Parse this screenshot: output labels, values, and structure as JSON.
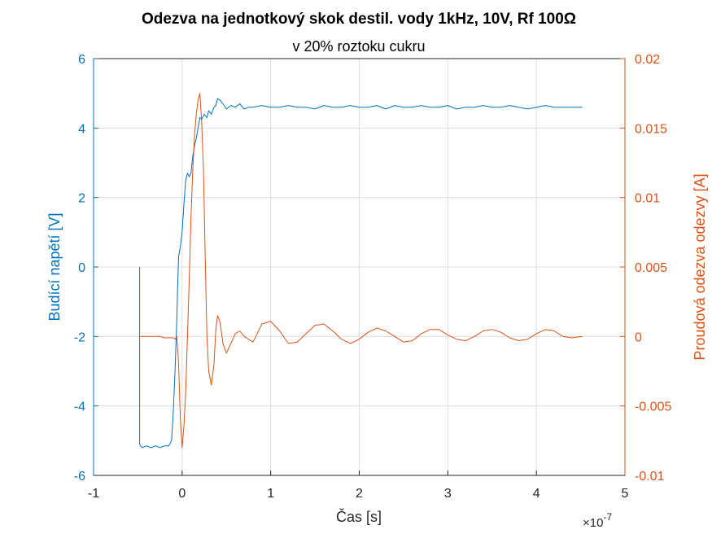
{
  "chart_data": {
    "type": "line",
    "title": "Odezva na jednotkový skok destil. vody 1kHz, 10V, Rf 100Ω",
    "subtitle": "v 20% roztoku cukru",
    "xlabel": "Čas [s]",
    "x_exponent_label": "×10",
    "x_exponent_power": "-7",
    "ylabel_left": "Budící napětí [V]",
    "ylabel_right": "Proudová odezva odezvy [A]",
    "xlim": [
      -1,
      5
    ],
    "ylim_left": [
      -6,
      6
    ],
    "ylim_right": [
      -0.01,
      0.02
    ],
    "x_ticks": [
      "-1",
      "0",
      "1",
      "2",
      "3",
      "4",
      "5"
    ],
    "y_ticks_left": [
      "-6",
      "-4",
      "-2",
      "0",
      "2",
      "4",
      "6"
    ],
    "y_ticks_right": [
      "-0.01",
      "-0.005",
      "0",
      "0.005",
      "0.01",
      "0.015",
      "0.02"
    ],
    "grid": true,
    "series": [
      {
        "axis": "left",
        "color": "#0072BD",
        "x": [
          -0.48,
          -0.48,
          -0.47,
          -0.45,
          -0.4,
          -0.35,
          -0.3,
          -0.25,
          -0.2,
          -0.15,
          -0.12,
          -0.1,
          -0.08,
          -0.06,
          -0.05,
          -0.04,
          -0.02,
          0.0,
          0.02,
          0.04,
          0.06,
          0.08,
          0.1,
          0.12,
          0.14,
          0.16,
          0.18,
          0.2,
          0.22,
          0.25,
          0.28,
          0.3,
          0.33,
          0.36,
          0.38,
          0.4,
          0.43,
          0.46,
          0.5,
          0.55,
          0.6,
          0.65,
          0.7,
          0.75,
          0.8,
          0.9,
          1.0,
          1.1,
          1.2,
          1.3,
          1.4,
          1.5,
          1.6,
          1.7,
          1.8,
          1.9,
          2.0,
          2.1,
          2.2,
          2.3,
          2.4,
          2.5,
          2.6,
          2.7,
          2.8,
          2.9,
          3.0,
          3.1,
          3.2,
          3.3,
          3.4,
          3.5,
          3.6,
          3.7,
          3.8,
          3.9,
          4.0,
          4.1,
          4.2,
          4.3,
          4.4,
          4.52
        ],
        "values": [
          0.0,
          -5.1,
          -5.15,
          -5.2,
          -5.15,
          -5.2,
          -5.15,
          -5.2,
          -5.15,
          -5.15,
          -5.0,
          -4.2,
          -3.0,
          -1.5,
          -0.5,
          0.3,
          0.6,
          1.0,
          1.8,
          2.5,
          2.7,
          2.6,
          2.7,
          3.2,
          3.5,
          3.7,
          4.0,
          4.3,
          4.25,
          4.4,
          4.3,
          4.5,
          4.4,
          4.6,
          4.65,
          4.85,
          4.8,
          4.7,
          4.55,
          4.65,
          4.6,
          4.7,
          4.55,
          4.6,
          4.6,
          4.65,
          4.6,
          4.6,
          4.65,
          4.6,
          4.6,
          4.55,
          4.65,
          4.6,
          4.6,
          4.65,
          4.6,
          4.6,
          4.65,
          4.55,
          4.65,
          4.6,
          4.6,
          4.65,
          4.6,
          4.6,
          4.65,
          4.55,
          4.6,
          4.6,
          4.65,
          4.6,
          4.6,
          4.65,
          4.6,
          4.55,
          4.6,
          4.65,
          4.6,
          4.6,
          4.6,
          4.6
        ]
      },
      {
        "axis": "right",
        "color": "#D95319",
        "x": [
          -0.47,
          -0.45,
          -0.4,
          -0.35,
          -0.3,
          -0.25,
          -0.2,
          -0.15,
          -0.1,
          -0.08,
          -0.06,
          -0.04,
          -0.02,
          0.0,
          0.02,
          0.04,
          0.06,
          0.08,
          0.1,
          0.12,
          0.14,
          0.16,
          0.18,
          0.2,
          0.22,
          0.24,
          0.26,
          0.28,
          0.3,
          0.33,
          0.36,
          0.38,
          0.4,
          0.43,
          0.46,
          0.5,
          0.55,
          0.6,
          0.65,
          0.7,
          0.8,
          0.9,
          1.0,
          1.1,
          1.2,
          1.3,
          1.4,
          1.5,
          1.6,
          1.7,
          1.8,
          1.9,
          2.0,
          2.1,
          2.2,
          2.3,
          2.4,
          2.5,
          2.6,
          2.7,
          2.8,
          2.9,
          3.0,
          3.1,
          3.2,
          3.3,
          3.4,
          3.5,
          3.6,
          3.7,
          3.8,
          3.9,
          4.0,
          4.1,
          4.2,
          4.3,
          4.4,
          4.52
        ],
        "values": [
          0.0,
          0.0,
          0.0,
          0.0,
          0.0,
          0.0,
          -0.0001,
          -0.0001,
          -0.0001,
          -0.0002,
          0.0,
          -0.002,
          -0.006,
          -0.008,
          -0.0065,
          -0.004,
          0.0,
          0.004,
          0.0085,
          0.012,
          0.0145,
          0.016,
          0.017,
          0.0175,
          0.0155,
          0.012,
          0.006,
          0.0,
          -0.0025,
          -0.0035,
          -0.002,
          0.0005,
          0.0015,
          0.001,
          -0.0005,
          -0.0012,
          -0.0005,
          0.0002,
          0.0004,
          0.0,
          -0.0004,
          0.0009,
          0.0011,
          0.0004,
          -0.0005,
          -0.0004,
          0.0002,
          0.0008,
          0.0009,
          0.0004,
          -0.0002,
          -0.0005,
          -0.0002,
          0.0003,
          0.0006,
          0.0004,
          0.0,
          -0.0004,
          -0.0003,
          0.0002,
          0.0005,
          0.0005,
          0.0001,
          -0.0002,
          -0.0003,
          0.0,
          0.0004,
          0.0005,
          0.0003,
          -0.0001,
          -0.0003,
          -0.0002,
          0.0002,
          0.0005,
          0.0004,
          0.0,
          -0.0001,
          0.0
        ]
      }
    ]
  }
}
